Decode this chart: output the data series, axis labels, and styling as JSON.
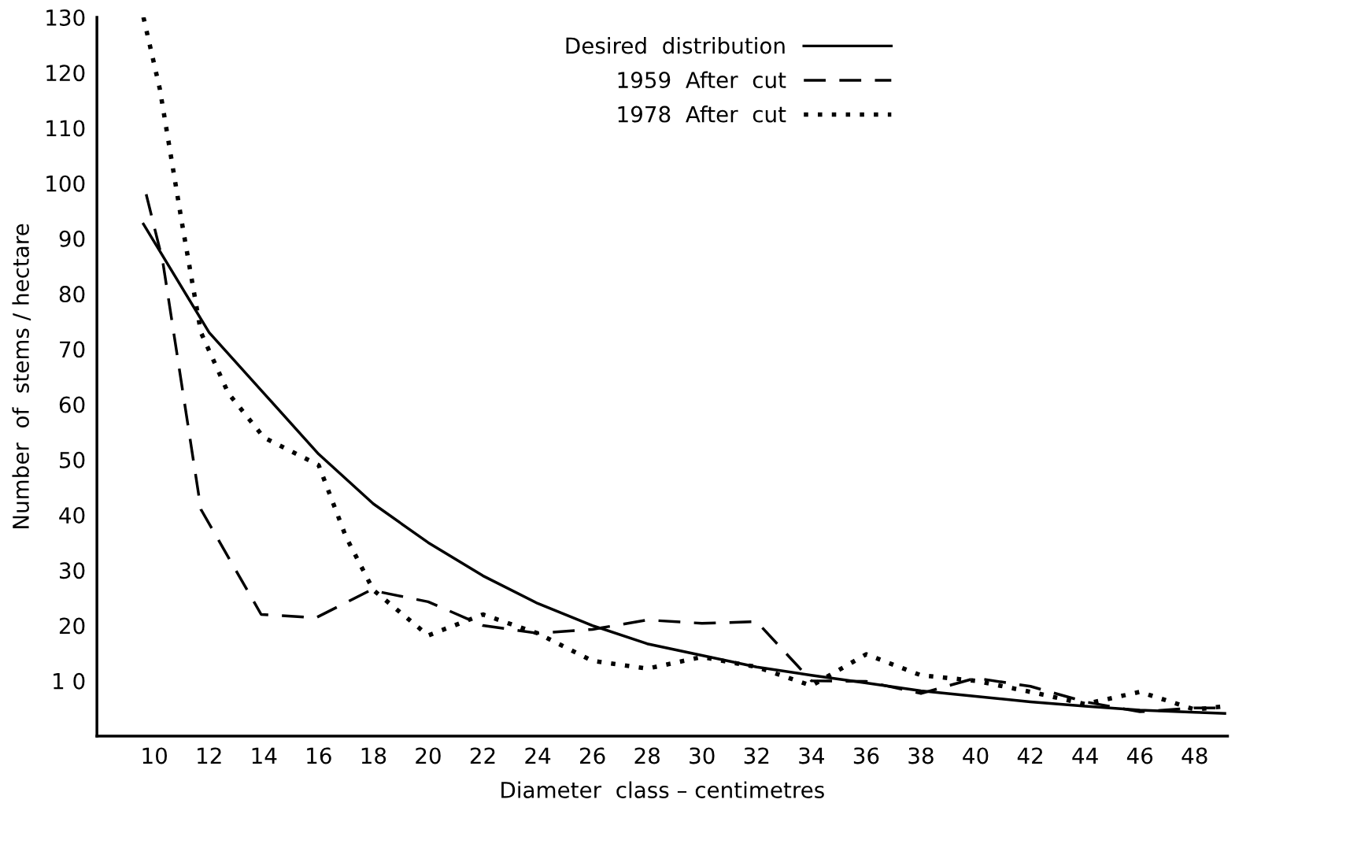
{
  "chart_data": {
    "type": "line",
    "xlabel": "Diameter  class – centimetres",
    "ylabel": "Number  of  stems / hectare",
    "xlim": [
      7.9,
      49.2
    ],
    "ylim": [
      0,
      130
    ],
    "xticks": [
      10,
      12,
      14,
      16,
      18,
      20,
      22,
      24,
      26,
      28,
      30,
      32,
      34,
      36,
      38,
      40,
      42,
      44,
      46,
      48
    ],
    "yticks": [
      {
        "value": 10,
        "label": "1 0"
      },
      20,
      30,
      40,
      50,
      60,
      70,
      80,
      90,
      100,
      110,
      120,
      130
    ],
    "grid": false,
    "legend": "top right",
    "marker": "none",
    "series": [
      {
        "name": "Desired  distribution",
        "color": "#000000",
        "line_style": "solid",
        "x": [
          9.6,
          12,
          14,
          16,
          18,
          20,
          22,
          24,
          26,
          28,
          30,
          32,
          34,
          36,
          38,
          40,
          42,
          44,
          46,
          48,
          49.1
        ],
        "values": [
          92.6,
          73,
          62,
          51,
          42,
          35,
          29,
          24,
          20,
          16.7,
          14.6,
          12.5,
          11,
          9.6,
          8.2,
          7.2,
          6.2,
          5.4,
          4.7,
          4.3,
          4.1
        ]
      },
      {
        "name": "1959  After  cut",
        "color": "#000000",
        "line_style": "dashed",
        "x": [
          9.7,
          10.3,
          11.7,
          13.9,
          15.9,
          17.9,
          20,
          22,
          24,
          26,
          28,
          30,
          32,
          34,
          36,
          38,
          40,
          42,
          44,
          46,
          48,
          49.1
        ],
        "values": [
          98,
          86,
          41,
          22,
          21.4,
          26.4,
          24.3,
          20,
          18.6,
          19.3,
          21,
          20.4,
          20.7,
          10,
          9.9,
          7.7,
          10.5,
          9,
          6.2,
          4.4,
          5.1,
          5.1
        ]
      },
      {
        "name": "1978  After  cut",
        "color": "#000000",
        "line_style": "dotted",
        "x": [
          9.6,
          10.2,
          11,
          11.7,
          12.7,
          14,
          16,
          17,
          18,
          20,
          22,
          24,
          26,
          28,
          30,
          32,
          34,
          36,
          38,
          40,
          42,
          44,
          46,
          48,
          49.1
        ],
        "values": [
          130,
          117,
          93,
          73,
          62,
          54,
          49,
          36,
          26.4,
          18.2,
          22,
          18.6,
          13.6,
          12.2,
          14.3,
          12.5,
          9.1,
          14.8,
          11,
          10,
          8,
          5.8,
          8,
          4.8,
          5.4
        ]
      }
    ]
  }
}
